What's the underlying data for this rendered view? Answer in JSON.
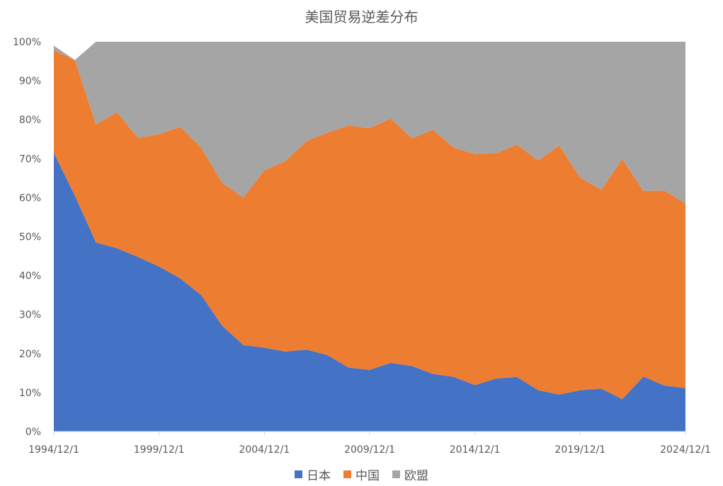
{
  "chart_data": {
    "type": "area",
    "stacked": "percent",
    "title": "美国贸易逆差分布",
    "xlabel": "",
    "ylabel": "",
    "ylim": [
      0,
      100
    ],
    "y_ticks": [
      "0%",
      "10%",
      "20%",
      "30%",
      "40%",
      "50%",
      "60%",
      "70%",
      "80%",
      "90%",
      "100%"
    ],
    "x_tick_labels": [
      "1994/12/1",
      "1999/12/1",
      "2004/12/1",
      "2009/12/1",
      "2014/12/1",
      "2019/12/1",
      "2024/12/1"
    ],
    "x_tick_years": [
      1994,
      1999,
      2004,
      2009,
      2014,
      2019,
      2024
    ],
    "x": [
      1994,
      1995,
      1996,
      1997,
      1998,
      1999,
      2000,
      2001,
      2002,
      2003,
      2004,
      2005,
      2006,
      2007,
      2008,
      2009,
      2010,
      2011,
      2012,
      2013,
      2014,
      2015,
      2016,
      2017,
      2018,
      2019,
      2020,
      2021,
      2022,
      2023,
      2024
    ],
    "series": [
      {
        "name": "日本",
        "color": "#4472c4",
        "values": [
          71.5,
          60.5,
          48.5,
          47.0,
          44.8,
          42.3,
          39.3,
          35.0,
          27.1,
          22.2,
          21.5,
          20.5,
          21.0,
          19.6,
          16.4,
          15.8,
          17.6,
          16.8,
          14.8,
          14.0,
          11.9,
          13.6,
          14.0,
          10.6,
          9.5,
          10.6,
          11.0,
          8.3,
          14.1,
          11.8,
          11.1
        ]
      },
      {
        "name": "中国",
        "color": "#ed7d31",
        "values": [
          26.3,
          34.8,
          30.3,
          34.9,
          30.5,
          34.0,
          38.9,
          37.8,
          36.7,
          37.8,
          45.5,
          48.9,
          53.5,
          57.1,
          62.1,
          62.0,
          62.7,
          58.4,
          62.6,
          58.8,
          59.3,
          57.8,
          59.6,
          58.9,
          63.9,
          54.5,
          51.0,
          61.6,
          47.6,
          50.0,
          47.4
        ]
      },
      {
        "name": "欧盟",
        "color": "#a5a5a5",
        "values": [
          1.2,
          0,
          21.2,
          18.1,
          24.7,
          23.7,
          21.8,
          27.2,
          36.2,
          40.0,
          33.0,
          30.6,
          25.5,
          23.3,
          21.5,
          22.2,
          19.7,
          24.8,
          22.6,
          27.2,
          28.8,
          28.6,
          26.4,
          30.5,
          26.6,
          34.9,
          38.0,
          30.1,
          38.3,
          38.2,
          41.5
        ]
      }
    ],
    "legend_position": "bottom",
    "grid": false
  }
}
